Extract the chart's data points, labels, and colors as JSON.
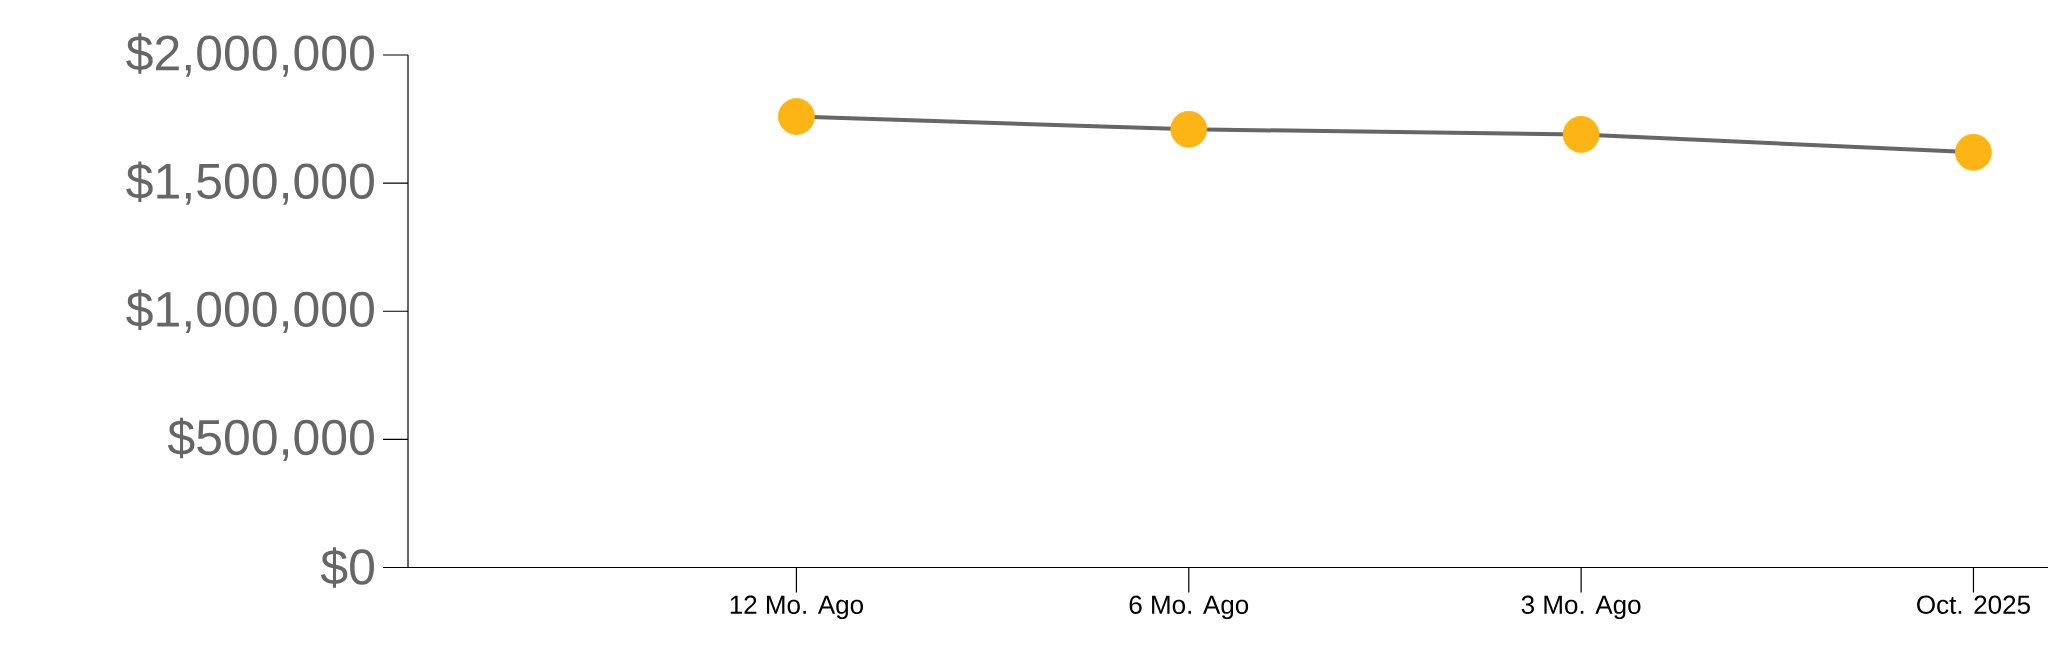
{
  "chart_data": {
    "type": "line",
    "categories": [
      "12 Mo. Ago",
      "6 Mo. Ago",
      "3 Mo. Ago",
      "Oct. 2025"
    ],
    "series": [
      {
        "color": "#666666",
        "colors": [
          "#fdb515",
          "#fdb515",
          "#fdb515",
          "#fdb515"
        ],
        "values": [
          1760000,
          1710000,
          1690000,
          1620000
        ]
      }
    ],
    "ylim": [
      0,
      2000000
    ],
    "yticks": [
      {
        "value": 0,
        "label": "$0"
      },
      {
        "value": 500000,
        "label": "$500,000"
      },
      {
        "value": 1000000,
        "label": "$1,000,000"
      },
      {
        "value": 1500000,
        "label": "$1,500,000"
      },
      {
        "value": 2000000,
        "label": "$2,000,000"
      }
    ],
    "marker": "circle",
    "line_style": "solid"
  }
}
